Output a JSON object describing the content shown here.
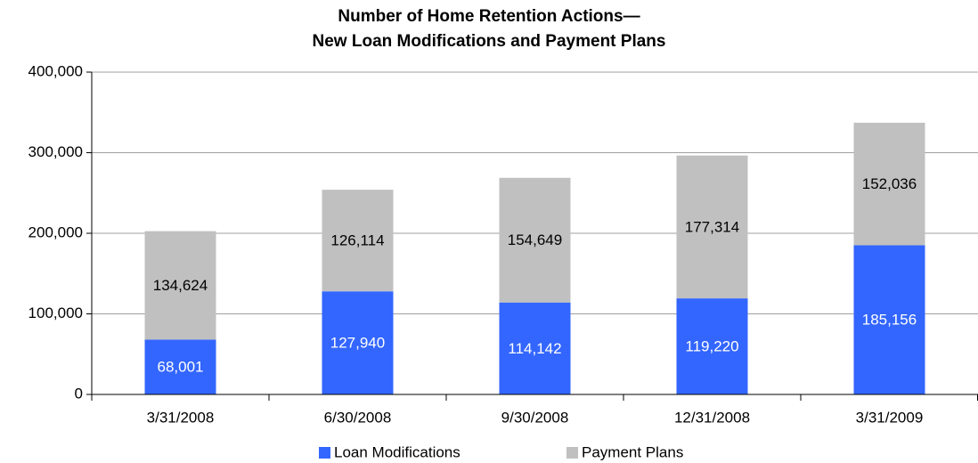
{
  "chart_data": {
    "type": "stacked_bar",
    "title": [
      "Number of Home Retention Actions—",
      "New Loan Modifications and Payment Plans"
    ],
    "categories": [
      "3/31/2008",
      "6/30/2008",
      "9/30/2008",
      "12/31/2008",
      "3/31/2009"
    ],
    "series": [
      {
        "name": "Loan Modifications",
        "color": "#3366ff",
        "label_color": "#ffffff",
        "values": [
          68001,
          127940,
          114142,
          119220,
          185156
        ],
        "value_labels": [
          "68,001",
          "127,940",
          "114,142",
          "119,220",
          "185,156"
        ]
      },
      {
        "name": "Payment Plans",
        "color": "#c0c0c0",
        "label_color": "#000000",
        "values": [
          134624,
          126114,
          154649,
          177314,
          152036
        ],
        "value_labels": [
          "134,624",
          "126,114",
          "154,649",
          "177,314",
          "152,036"
        ]
      }
    ],
    "ylim": [
      0,
      400000
    ],
    "yticks": [
      0,
      {
        "value": 100000,
        "label": "100,000"
      },
      {
        "value": 200000,
        "label": "200,000"
      },
      {
        "value": 300000,
        "label": "300,000"
      },
      {
        "value": 400000,
        "label": "400,000"
      }
    ],
    "grid": true,
    "legend": "bottom"
  }
}
